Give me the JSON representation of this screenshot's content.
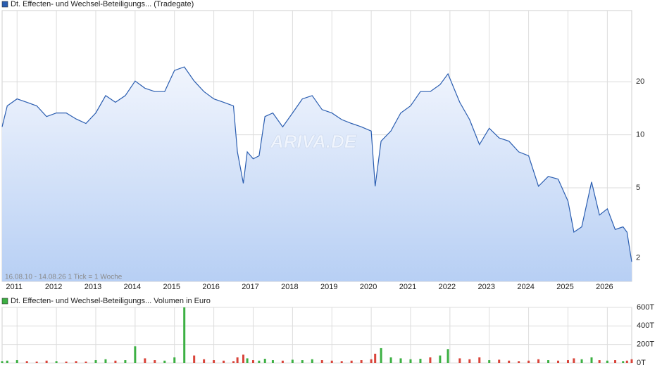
{
  "chart_data": [
    {
      "type": "line",
      "series": [
        {
          "name": "Dt. Effecten- und Wechsel-Beteiligungs... (Tradegate)",
          "color": "#2a5db0",
          "values": [
            11.1,
            14.6,
            16.0,
            15.3,
            14.6,
            12.7,
            13.3,
            13.3,
            12.3,
            11.6,
            13.3,
            16.7,
            15.3,
            16.7,
            20.2,
            18.4,
            17.6,
            17.6,
            23.2,
            24.3,
            20.2,
            17.6,
            16.0,
            15.3,
            14.6,
            8.0,
            5.3,
            8.0,
            7.3,
            7.6,
            12.7,
            13.3,
            11.1,
            13.3,
            16.0,
            16.7,
            13.9,
            13.3,
            12.2,
            11.6,
            11.1,
            10.5,
            5.1,
            9.2,
            10.5,
            13.3,
            14.6,
            17.6,
            17.6,
            19.3,
            22.2,
            15.3,
            12.2,
            8.8,
            10.9,
            9.6,
            9.2,
            8.0,
            7.6,
            5.1,
            5.8,
            5.6,
            4.2,
            2.8,
            3.0,
            5.4,
            3.5,
            3.8,
            2.9,
            3.0,
            2.8,
            1.9
          ]
        }
      ],
      "x": [
        2010.62,
        2010.75,
        2011.0,
        2011.25,
        2011.5,
        2011.75,
        2012.0,
        2012.25,
        2012.5,
        2012.75,
        2013.0,
        2013.25,
        2013.5,
        2013.75,
        2014.0,
        2014.25,
        2014.5,
        2014.75,
        2015.0,
        2015.25,
        2015.5,
        2015.75,
        2016.0,
        2016.25,
        2016.5,
        2016.6,
        2016.75,
        2016.85,
        2017.0,
        2017.15,
        2017.3,
        2017.5,
        2017.75,
        2018.0,
        2018.25,
        2018.5,
        2018.75,
        2019.0,
        2019.25,
        2019.5,
        2019.75,
        2020.0,
        2020.1,
        2020.25,
        2020.5,
        2020.75,
        2021.0,
        2021.25,
        2021.5,
        2021.75,
        2021.95,
        2022.25,
        2022.5,
        2022.75,
        2023.0,
        2023.25,
        2023.5,
        2023.75,
        2024.0,
        2024.25,
        2024.5,
        2024.75,
        2025.0,
        2025.15,
        2025.35,
        2025.6,
        2025.8,
        2026.0,
        2026.2,
        2026.4,
        2026.5,
        2026.62
      ],
      "xlim": [
        2010.62,
        2026.62
      ],
      "xticks": [
        2011,
        2012,
        2013,
        2014,
        2015,
        2016,
        2017,
        2018,
        2019,
        2020,
        2021,
        2022,
        2023,
        2024,
        2025,
        2026
      ],
      "ylim": [
        1.47,
        50.8
      ],
      "yticks": [
        2,
        5,
        10,
        20
      ],
      "log_scale": true,
      "grid": true,
      "watermark": "ARIVA.DE",
      "footnote": "16.08.10 - 14.08.26   1 Tick = 1 Woche"
    },
    {
      "type": "bar",
      "series": [
        {
          "name": "Dt. Effecten- und Wechsel-Beteiligungs... Volumen in Euro",
          "color": "#3cb043",
          "values": [
            20,
            25,
            30,
            20,
            15,
            25,
            20,
            15,
            20,
            15,
            30,
            40,
            25,
            30,
            180,
            50,
            30,
            25,
            60,
            600,
            80,
            40,
            30,
            25,
            20,
            60,
            90,
            50,
            30,
            25,
            45,
            30,
            25,
            35,
            30,
            40,
            30,
            25,
            20,
            25,
            30,
            40,
            100,
            160,
            60,
            50,
            40,
            45,
            60,
            80,
            150,
            50,
            40,
            60,
            30,
            35,
            25,
            20,
            25,
            40,
            30,
            25,
            30,
            50,
            40,
            60,
            30,
            25,
            30,
            20,
            25,
            40
          ],
          "bar_colors": [
            "#3cb043",
            "#3cb043",
            "#3cb043",
            "#d9443a",
            "#d9443a",
            "#d9443a",
            "#3cb043",
            "#d9443a",
            "#d9443a",
            "#d9443a",
            "#3cb043",
            "#3cb043",
            "#d9443a",
            "#3cb043",
            "#3cb043",
            "#d9443a",
            "#d9443a",
            "#3cb043",
            "#3cb043",
            "#3cb043",
            "#d9443a",
            "#d9443a",
            "#d9443a",
            "#d9443a",
            "#d9443a",
            "#d9443a",
            "#d9443a",
            "#3cb043",
            "#d9443a",
            "#3cb043",
            "#3cb043",
            "#3cb043",
            "#d9443a",
            "#3cb043",
            "#3cb043",
            "#3cb043",
            "#d9443a",
            "#d9443a",
            "#d9443a",
            "#d9443a",
            "#d9443a",
            "#d9443a",
            "#d9443a",
            "#3cb043",
            "#3cb043",
            "#3cb043",
            "#3cb043",
            "#3cb043",
            "#d9443a",
            "#3cb043",
            "#3cb043",
            "#d9443a",
            "#d9443a",
            "#d9443a",
            "#3cb043",
            "#d9443a",
            "#d9443a",
            "#d9443a",
            "#d9443a",
            "#d9443a",
            "#3cb043",
            "#d9443a",
            "#d9443a",
            "#d9443a",
            "#3cb043",
            "#3cb043",
            "#d9443a",
            "#3cb043",
            "#d9443a",
            "#3cb043",
            "#d9443a",
            "#d9443a"
          ]
        }
      ],
      "x": [
        2010.62,
        2010.75,
        2011.0,
        2011.25,
        2011.5,
        2011.75,
        2012.0,
        2012.25,
        2012.5,
        2012.75,
        2013.0,
        2013.25,
        2013.5,
        2013.75,
        2014.0,
        2014.25,
        2014.5,
        2014.75,
        2015.0,
        2015.25,
        2015.5,
        2015.75,
        2016.0,
        2016.25,
        2016.5,
        2016.6,
        2016.75,
        2016.85,
        2017.0,
        2017.15,
        2017.3,
        2017.5,
        2017.75,
        2018.0,
        2018.25,
        2018.5,
        2018.75,
        2019.0,
        2019.25,
        2019.5,
        2019.75,
        2020.0,
        2020.1,
        2020.25,
        2020.5,
        2020.75,
        2021.0,
        2021.25,
        2021.5,
        2021.75,
        2021.95,
        2022.25,
        2022.5,
        2022.75,
        2023.0,
        2023.25,
        2023.5,
        2023.75,
        2024.0,
        2024.25,
        2024.5,
        2024.75,
        2025.0,
        2025.15,
        2025.35,
        2025.6,
        2025.8,
        2026.0,
        2026.2,
        2026.4,
        2026.5,
        2026.62
      ],
      "xlim": [
        2010.62,
        2026.62
      ],
      "xticks": [
        2011,
        2012,
        2013,
        2014,
        2015,
        2016,
        2017,
        2018,
        2019,
        2020,
        2021,
        2022,
        2023,
        2024,
        2025,
        2026
      ],
      "ylim": [
        0,
        600
      ],
      "yticks": [
        {
          "value": 0,
          "label": "0T"
        },
        {
          "value": 200,
          "label": "200T"
        },
        {
          "value": 400,
          "label": "400T"
        },
        {
          "value": 600,
          "label": "600T"
        }
      ],
      "grid": true
    }
  ]
}
